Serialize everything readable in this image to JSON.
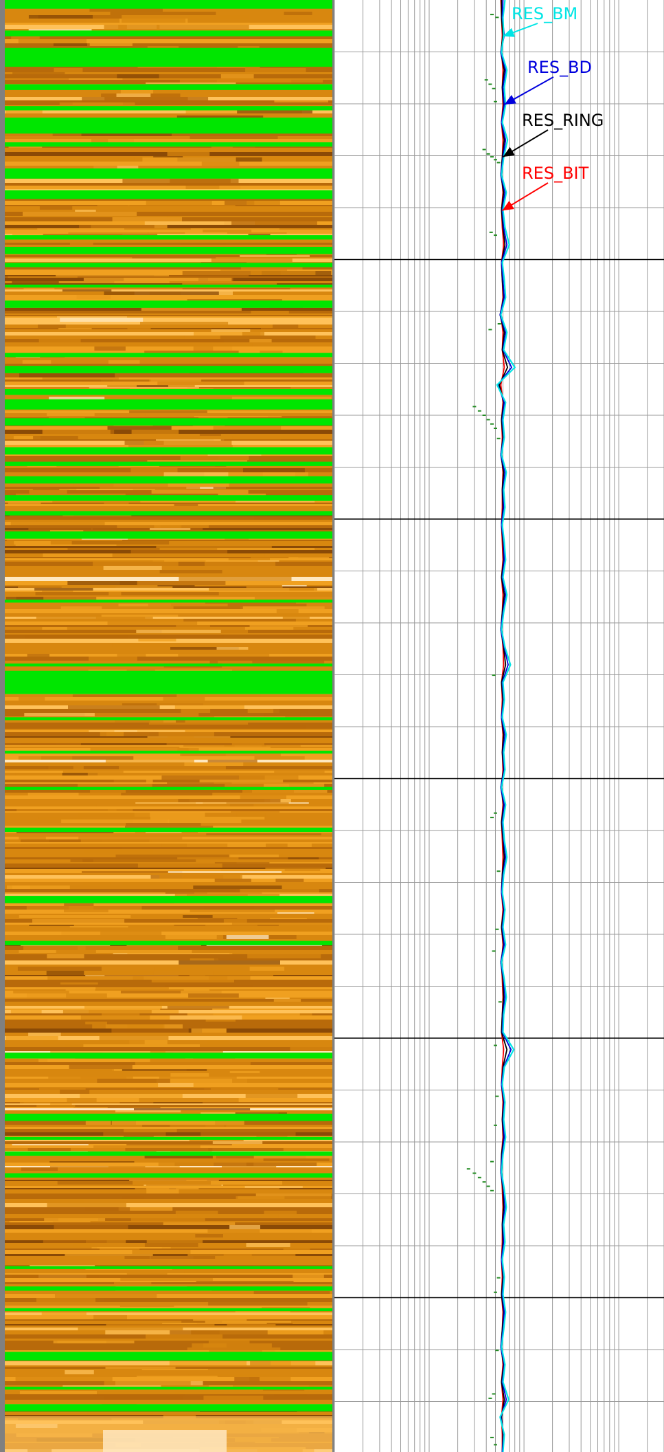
{
  "chart_data": {
    "type": "line",
    "title": "",
    "xlabel": "",
    "ylabel": "",
    "x_scale": "log",
    "grid": true,
    "image_track": {
      "kind": "borehole resistivity image",
      "palette": [
        "#8a4a06",
        "#b86a0a",
        "#d8870f",
        "#f0a020",
        "#ffc25a",
        "#ffe8c0"
      ],
      "flag_color": "#00e600",
      "flagged_bands": [
        [
          0.0,
          0.006
        ],
        [
          0.021,
          0.025
        ],
        [
          0.033,
          0.046
        ],
        [
          0.058,
          0.062
        ],
        [
          0.073,
          0.076
        ],
        [
          0.081,
          0.092
        ],
        [
          0.098,
          0.101
        ],
        [
          0.116,
          0.123
        ],
        [
          0.131,
          0.137
        ],
        [
          0.162,
          0.165
        ],
        [
          0.17,
          0.175
        ],
        [
          0.181,
          0.184
        ],
        [
          0.196,
          0.198
        ],
        [
          0.207,
          0.212
        ],
        [
          0.243,
          0.246
        ],
        [
          0.252,
          0.257
        ],
        [
          0.268,
          0.272
        ],
        [
          0.275,
          0.282
        ],
        [
          0.288,
          0.293
        ],
        [
          0.308,
          0.313
        ],
        [
          0.318,
          0.321
        ],
        [
          0.328,
          0.333
        ],
        [
          0.341,
          0.345
        ],
        [
          0.352,
          0.355
        ],
        [
          0.366,
          0.371
        ],
        [
          0.413,
          0.415
        ],
        [
          0.457,
          0.459
        ],
        [
          0.462,
          0.478
        ],
        [
          0.494,
          0.496
        ],
        [
          0.517,
          0.519
        ],
        [
          0.542,
          0.544
        ],
        [
          0.57,
          0.573
        ],
        [
          0.617,
          0.622
        ],
        [
          0.648,
          0.651
        ],
        [
          0.725,
          0.729
        ],
        [
          0.767,
          0.772
        ],
        [
          0.783,
          0.785
        ],
        [
          0.793,
          0.796
        ],
        [
          0.808,
          0.811
        ],
        [
          0.872,
          0.874
        ],
        [
          0.886,
          0.889
        ],
        [
          0.901,
          0.903
        ],
        [
          0.931,
          0.937
        ],
        [
          0.955,
          0.957
        ],
        [
          0.967,
          0.972
        ]
      ]
    },
    "series": [
      {
        "name": "RES_BM",
        "color": "#00e5e5",
        "values": [
          63,
          60,
          61,
          58,
          66,
          62,
          64,
          59,
          67,
          61,
          58,
          65,
          60,
          63,
          70,
          59,
          62,
          64,
          57,
          66,
          61,
          80,
          52,
          64,
          60,
          62,
          58,
          65,
          61,
          63,
          59,
          62,
          64,
          60,
          66,
          61,
          58,
          63,
          72,
          60,
          62,
          59,
          65,
          61,
          63,
          58,
          64,
          60,
          62,
          66,
          61,
          59,
          63,
          60,
          64,
          58,
          62,
          65,
          61,
          60,
          78,
          62,
          59,
          63,
          61,
          64,
          60,
          58,
          62,
          65,
          61,
          63,
          59,
          62,
          60,
          64,
          61,
          58,
          63,
          60,
          69,
          56,
          62,
          60
        ]
      },
      {
        "name": "RES_BD",
        "color": "#0000dd",
        "values": [
          60,
          59,
          62,
          57,
          64,
          60,
          62,
          58,
          64,
          60,
          57,
          63,
          59,
          61,
          66,
          58,
          60,
          62,
          56,
          64,
          60,
          74,
          53,
          62,
          59,
          61,
          57,
          63,
          60,
          61,
          58,
          61,
          62,
          59,
          64,
          60,
          57,
          62,
          68,
          59,
          61,
          58,
          63,
          60,
          62,
          57,
          62,
          59,
          61,
          64,
          60,
          58,
          62,
          59,
          62,
          57,
          61,
          63,
          60,
          59,
          73,
          61,
          58,
          62,
          60,
          62,
          59,
          57,
          61,
          63,
          60,
          61,
          58,
          61,
          59,
          62,
          60,
          57,
          62,
          59,
          65,
          57,
          61,
          59
        ]
      },
      {
        "name": "RES_RING",
        "color": "#000000",
        "values": [
          58,
          58,
          60,
          57,
          62,
          59,
          61,
          58,
          62,
          59,
          57,
          61,
          58,
          60,
          63,
          58,
          59,
          61,
          56,
          62,
          59,
          67,
          55,
          61,
          58,
          60,
          57,
          61,
          59,
          60,
          58,
          60,
          61,
          58,
          62,
          59,
          57,
          61,
          64,
          58,
          60,
          58,
          61,
          59,
          61,
          57,
          61,
          58,
          60,
          62,
          59,
          58,
          61,
          58,
          61,
          57,
          60,
          61,
          59,
          58,
          66,
          60,
          58,
          61,
          59,
          61,
          58,
          57,
          60,
          61,
          59,
          60,
          58,
          60,
          58,
          61,
          59,
          57,
          61,
          58,
          62,
          58,
          60,
          59
        ]
      },
      {
        "name": "RES_BIT",
        "color": "#ff0000",
        "values": [
          57,
          58,
          59,
          58,
          60,
          59,
          60,
          58,
          60,
          59,
          58,
          60,
          58,
          59,
          61,
          58,
          59,
          60,
          57,
          60,
          59,
          62,
          57,
          60,
          58,
          59,
          58,
          60,
          59,
          59,
          58,
          59,
          60,
          58,
          60,
          59,
          58,
          60,
          61,
          58,
          59,
          58,
          60,
          59,
          60,
          58,
          60,
          58,
          59,
          60,
          59,
          58,
          60,
          58,
          60,
          58,
          59,
          60,
          59,
          58,
          61,
          59,
          58,
          60,
          59,
          60,
          58,
          58,
          59,
          60,
          59,
          59,
          58,
          59,
          58,
          60,
          59,
          58,
          60,
          58,
          60,
          58,
          59,
          59
        ]
      }
    ],
    "scatter_series": {
      "color": "#228b22",
      "points": [
        [
          0.01,
          46
        ],
        [
          0.012,
          52
        ],
        [
          0.055,
          40
        ],
        [
          0.058,
          44
        ],
        [
          0.061,
          48
        ],
        [
          0.07,
          50
        ],
        [
          0.103,
          38
        ],
        [
          0.106,
          42
        ],
        [
          0.108,
          46
        ],
        [
          0.11,
          50
        ],
        [
          0.112,
          54
        ],
        [
          0.16,
          45
        ],
        [
          0.162,
          50
        ],
        [
          0.223,
          55
        ],
        [
          0.227,
          44
        ],
        [
          0.28,
          30
        ],
        [
          0.283,
          34
        ],
        [
          0.286,
          38
        ],
        [
          0.289,
          42
        ],
        [
          0.292,
          46
        ],
        [
          0.295,
          50
        ],
        [
          0.302,
          54
        ],
        [
          0.465,
          48
        ],
        [
          0.56,
          50
        ],
        [
          0.563,
          46
        ],
        [
          0.6,
          54
        ],
        [
          0.64,
          52
        ],
        [
          0.655,
          48
        ],
        [
          0.69,
          56
        ],
        [
          0.72,
          50
        ],
        [
          0.755,
          52
        ],
        [
          0.775,
          50
        ],
        [
          0.8,
          46
        ],
        [
          0.805,
          26
        ],
        [
          0.808,
          30
        ],
        [
          0.811,
          34
        ],
        [
          0.814,
          38
        ],
        [
          0.817,
          42
        ],
        [
          0.82,
          46
        ],
        [
          0.88,
          54
        ],
        [
          0.89,
          50
        ],
        [
          0.93,
          52
        ],
        [
          0.96,
          48
        ],
        [
          0.963,
          44
        ],
        [
          0.99,
          46
        ],
        [
          0.995,
          50
        ]
      ]
    },
    "annotations": [
      {
        "text": "RES_BM",
        "color": "#00e5e5",
        "target_depth": 0.025,
        "target_value": 60
      },
      {
        "text": "RES_BD",
        "color": "#0000dd",
        "target_depth": 0.072,
        "target_value": 62
      },
      {
        "text": "RES_RING",
        "color": "#000000",
        "target_depth": 0.108,
        "target_value": 60
      },
      {
        "text": "RES_BIT",
        "color": "#ff0000",
        "target_depth": 0.145,
        "target_value": 59
      }
    ]
  }
}
